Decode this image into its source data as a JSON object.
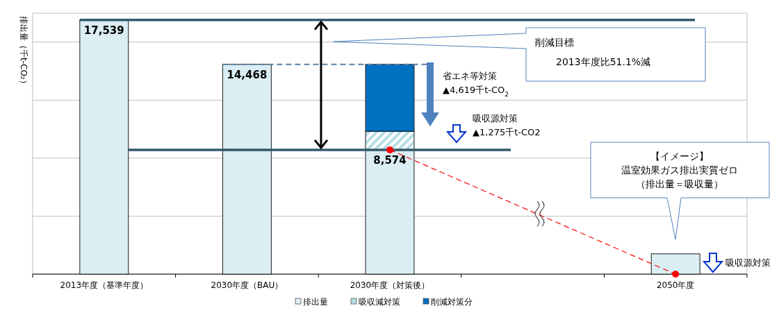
{
  "chart_data": {
    "type": "bar",
    "stacked": true,
    "ylabel": "排出量（千t-CO₂）",
    "categories": [
      "2013年度（基準年度）",
      "2030年度（BAU）",
      "2030年度（対策後）",
      null,
      "2050年度"
    ],
    "series": [
      {
        "name": "排出量",
        "color": "#daeef3",
        "values": [
          17539,
          14468,
          8574,
          null,
          1400
        ],
        "value_labels": [
          "17,539",
          "14,468",
          "8,574",
          null,
          null
        ]
      },
      {
        "name": "吸収減対策",
        "color": "#b7dde8",
        "values": [
          null,
          null,
          1275,
          null,
          null
        ]
      },
      {
        "name": "削減対策分",
        "color": "#0070c0",
        "values": [
          null,
          null,
          4619,
          null,
          null
        ]
      },
      {
        "type": "line",
        "color": "#ff0000",
        "line_style": "dashed",
        "marker": "circle",
        "values": [
          null,
          null,
          8574,
          null,
          0
        ]
      }
    ],
    "ylim": [
      0,
      18000
    ],
    "yticks": [
      {
        "value": 4000,
        "label": null
      },
      {
        "value": 8000,
        "label": null
      },
      {
        "value": 12000,
        "label": null
      },
      {
        "value": 16000,
        "label": null
      }
    ],
    "tick_labels": "x",
    "grid": "y",
    "legend": "bottom",
    "ref_lines": [
      {
        "axis": "y",
        "value": 17539,
        "color": "#31596b",
        "line_style": "solid"
      },
      {
        "axis": "y",
        "value": 14468,
        "color": "#5b7fa6",
        "line_style": "dashed"
      },
      {
        "axis": "y",
        "value": 8574,
        "color": "#31596b",
        "line_style": "solid"
      }
    ],
    "annotations": [
      "削減目標\n2013年度比51.1%減",
      "省エネ等対策\n▲4,619千t-CO$_{2}$",
      "吸収源対策\n▲1,275千t-CO2",
      "【イメージ】",
      "温室効果ガス排出実質ゼロ",
      "（排出量＝吸収量）",
      "吸収源対策"
    ]
  }
}
